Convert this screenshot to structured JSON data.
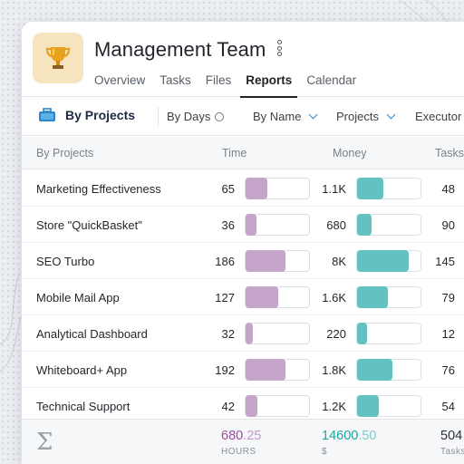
{
  "header": {
    "title": "Management Team",
    "tabs": [
      "Overview",
      "Tasks",
      "Files",
      "Reports",
      "Calendar"
    ],
    "active_tab": "Reports"
  },
  "toolbar": {
    "group_label": "By Projects",
    "by_days": "By Days",
    "by_name": "By Name",
    "projects": "Projects",
    "executor": "Executor"
  },
  "table": {
    "headers": [
      "By Projects",
      "Time",
      "Money",
      "Tasks"
    ],
    "rows": [
      {
        "name": "Marketing Effectiveness",
        "time": "65",
        "time_frac": 0.34,
        "money": "1.1K",
        "money_frac": 0.41,
        "tasks": "48"
      },
      {
        "name": "Store \"QuickBasket\"",
        "time": "36",
        "time_frac": 0.17,
        "money": "680",
        "money_frac": 0.23,
        "tasks": "90"
      },
      {
        "name": "SEO Turbo",
        "time": "186",
        "time_frac": 0.63,
        "money": "8K",
        "money_frac": 0.82,
        "tasks": "145"
      },
      {
        "name": "Mobile Mail App",
        "time": "127",
        "time_frac": 0.51,
        "money": "1.6K",
        "money_frac": 0.49,
        "tasks": "79"
      },
      {
        "name": "Analytical Dashboard",
        "time": "32",
        "time_frac": 0.11,
        "money": "220",
        "money_frac": 0.16,
        "tasks": "12"
      },
      {
        "name": "Whiteboard+ App",
        "time": "192",
        "time_frac": 0.63,
        "money": "1.8K",
        "money_frac": 0.56,
        "tasks": "76"
      },
      {
        "name": "Technical Support",
        "time": "42",
        "time_frac": 0.19,
        "money": "1.2K",
        "money_frac": 0.34,
        "tasks": "54"
      }
    ]
  },
  "footer": {
    "hours_int": "680",
    "hours_dec": ".25",
    "hours_unit": "HOURS",
    "money_int": "14600",
    "money_dec": ".50",
    "money_unit": "$",
    "tasks_total": "504",
    "tasks_unit": "Tasks"
  },
  "colors": {
    "time_bar": "#c6a5cb",
    "money_bar": "#62c2c1",
    "hours_total": "#9c4fa0",
    "money_total": "#1aa7a0",
    "accent": "#2c86c9",
    "app_icon_bg": "#f6e4bf"
  },
  "icons": {
    "app": "trophy-icon",
    "menu": "kebab-menu-icon",
    "group": "briefcase-icon",
    "sum": "sigma-icon"
  }
}
